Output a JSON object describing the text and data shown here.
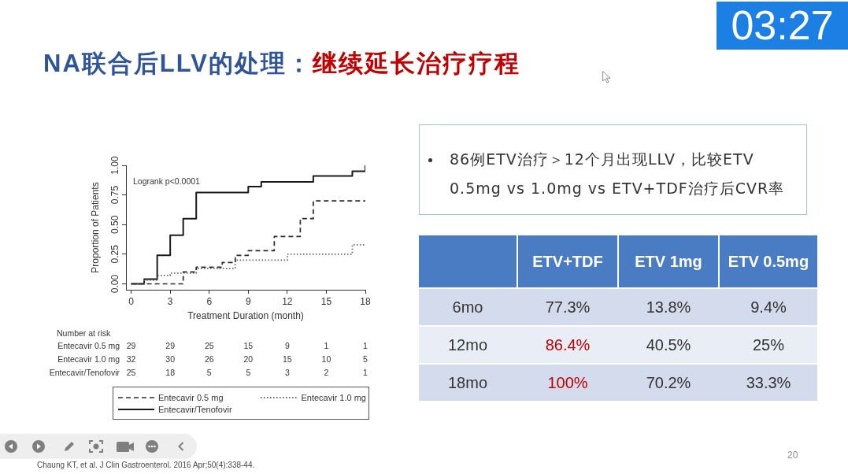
{
  "chart_data": [
    {
      "type": "other",
      "title": "NA联合后LLV的处理：",
      "subtitle": "继续延长治疗疗程",
      "annotations": [
        "86例ETV治疗＞12个月出现LLV，比较ETV 0.5mg vs 1.0mg vs ETV+TDF治疗后CVR率",
        "20",
        "03:27"
      ]
    },
    {
      "type": "step",
      "xlabel": "Treatment Duration (month)",
      "ylabel": "Proportion of Patients",
      "xlim": [
        -0.4,
        18
      ],
      "ylim": [
        -0.05,
        1
      ],
      "xticks": [
        0,
        3,
        6,
        9,
        12,
        15,
        18
      ],
      "yticks": [
        {
          "value": 0,
          "label": "0.00"
        },
        {
          "value": 0.25,
          "label": "0.25"
        },
        {
          "value": 0.5,
          "label": "0.50"
        },
        {
          "value": 0.75,
          "label": "0.75"
        },
        {
          "value": 1,
          "label": "1.00"
        }
      ],
      "grid": false,
      "marker": "none",
      "legend": "bottom",
      "series": [
        {
          "name": "Entecavir 0.5 mg",
          "color": "#2a2a2a",
          "line_style": "dashed",
          "x": [
            0,
            4,
            5,
            7,
            8,
            9,
            11,
            13,
            14,
            18
          ],
          "values": [
            0,
            0.1,
            0.14,
            0.18,
            0.24,
            0.28,
            0.4,
            0.55,
            0.7,
            0.7
          ]
        },
        {
          "name": "Entecavir 1.0 mg",
          "color": "#666666",
          "line_style": "dotted",
          "x": [
            0,
            1,
            2,
            3,
            5,
            8,
            12,
            17,
            18
          ],
          "values": [
            0,
            0.03,
            0.07,
            0.09,
            0.13,
            0.2,
            0.25,
            0.33,
            0.33
          ]
        },
        {
          "name": "Entecavir/Tenofovir",
          "color": "#1a1a1a",
          "line_style": "solid",
          "x": [
            0,
            1,
            2,
            3,
            4,
            5,
            9,
            10,
            14,
            17,
            18
          ],
          "values": [
            0,
            0.04,
            0.24,
            0.41,
            0.55,
            0.77,
            0.82,
            0.86,
            0.91,
            0.95,
            1
          ]
        }
      ],
      "annotations": [
        "Logrank p<0.0001",
        "Chaung KT, et al. J Clin Gastroenterol. 2016 Apr;50(4):338-44."
      ]
    },
    {
      "type": "other",
      "title": "Number at risk",
      "data_labels": true,
      "categories": [
        "Entecavir 0.5 mg",
        "Entecavir 1.0 mg",
        "Entecavir/Tenofovir"
      ],
      "series": [
        {
          "color": "#333333",
          "values": [
            29,
            32,
            25
          ]
        },
        {
          "color": "#333333",
          "values": [
            29,
            30,
            18
          ]
        },
        {
          "color": "#333333",
          "values": [
            25,
            26,
            5
          ]
        },
        {
          "color": "#333333",
          "values": [
            15,
            20,
            5
          ]
        },
        {
          "color": "#333333",
          "values": [
            9,
            15,
            3
          ]
        },
        {
          "color": "#333333",
          "values": [
            1,
            10,
            2
          ]
        },
        {
          "color": "#333333",
          "values": [
            1,
            5,
            1
          ]
        }
      ]
    },
    {
      "type": "other",
      "categories": [
        "ETV+TDF",
        "ETV 1mg",
        "ETV 0.5mg"
      ],
      "series": [
        {
          "name": "6mo",
          "color": "#333333",
          "colors": [
            "#333333",
            "#333333",
            "#333333"
          ],
          "values": [
            77.3,
            13.8,
            9.4
          ],
          "value_labels": [
            "77.3%",
            "13.8%",
            "9.4%"
          ]
        },
        {
          "name": "12mo",
          "color": "#333333",
          "colors": [
            "#c00000",
            "#333333",
            "#333333"
          ],
          "values": [
            86.4,
            40.5,
            25
          ],
          "value_labels": [
            "86.4%",
            "40.5%",
            "25%"
          ]
        },
        {
          "name": "18mo",
          "color": "#333333",
          "colors": [
            "#c00000",
            "#333333",
            "#333333"
          ],
          "values": [
            100,
            70.2,
            33.3
          ],
          "value_labels": [
            "100%",
            "70.2%",
            "33.3%"
          ]
        }
      ]
    }
  ]
}
